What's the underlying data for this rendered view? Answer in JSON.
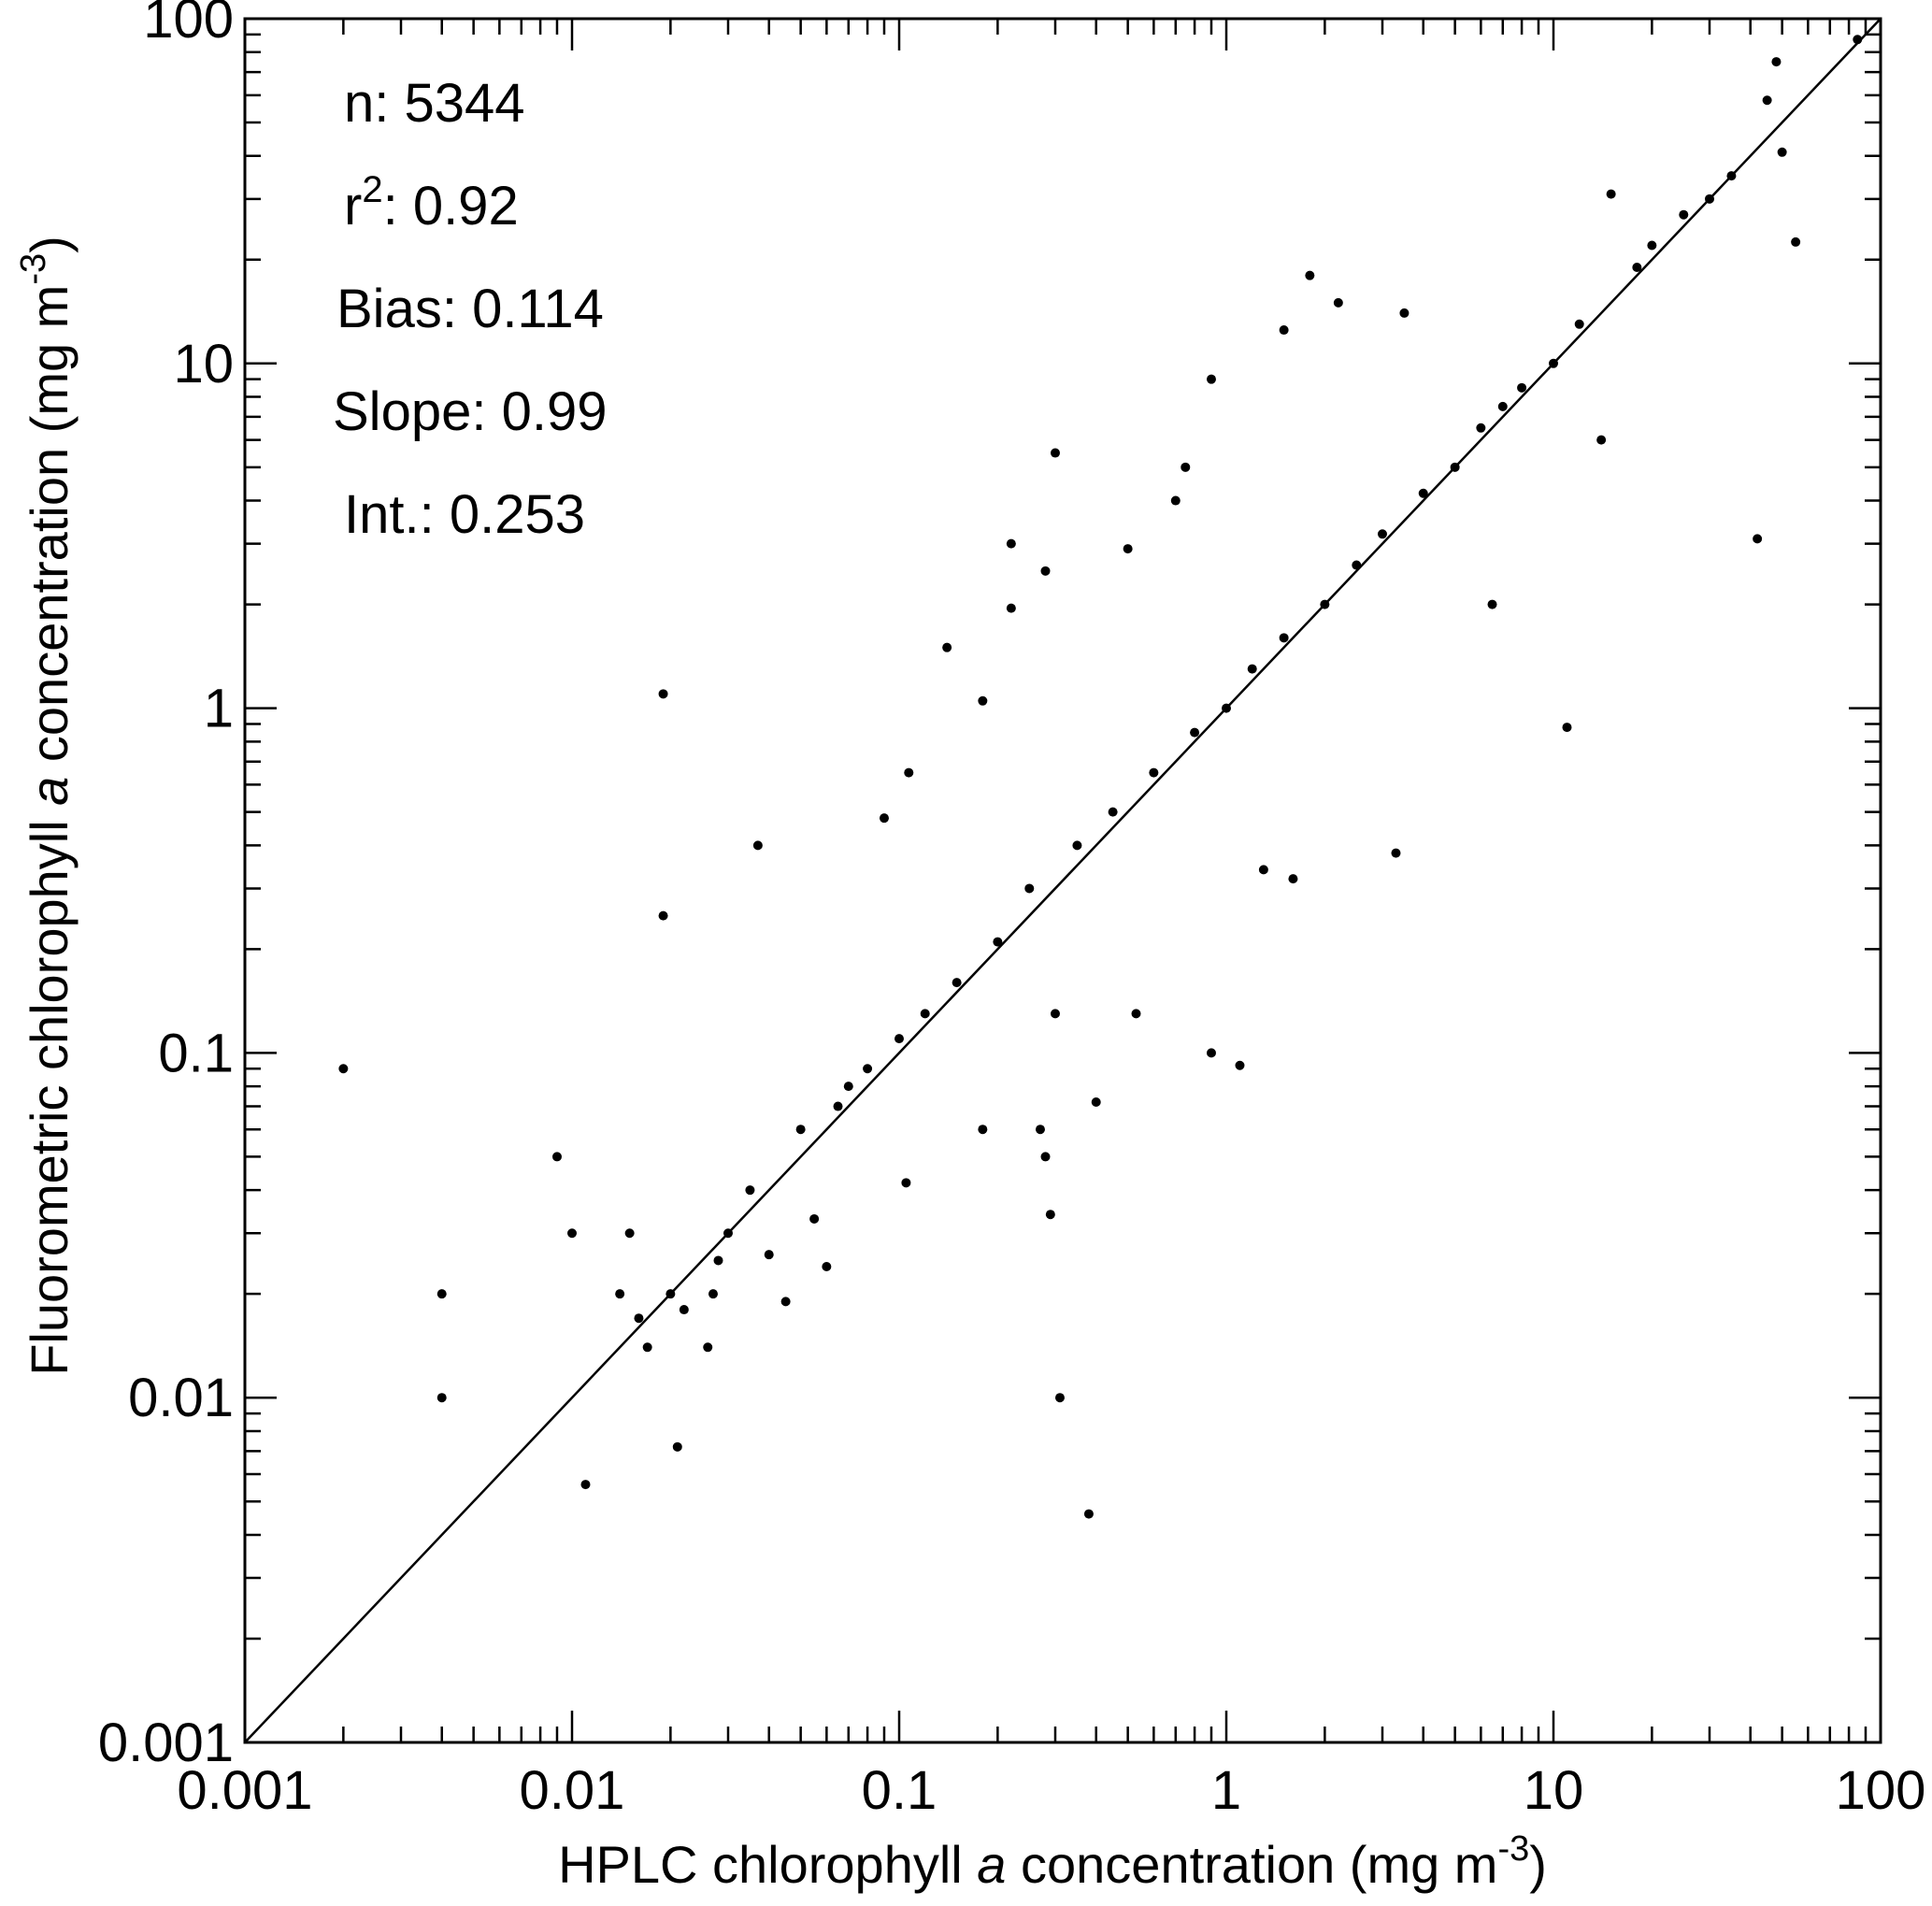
{
  "chart_data": {
    "type": "scatter",
    "title": "",
    "xlabel": {
      "prefix": "HPLC chlorophyll ",
      "italic": "a",
      "suffix": " concentration (mg m",
      "superscript": "-3",
      "close": ")"
    },
    "ylabel": {
      "prefix": "Fluorometric chlorophyll ",
      "italic": "a",
      "suffix": " concentration (mg m",
      "superscript": "-3",
      "close": ")"
    },
    "xscale": "log",
    "yscale": "log",
    "xlim": [
      0.001,
      100
    ],
    "ylim": [
      0.001,
      100
    ],
    "xticks": [
      0.001,
      0.01,
      0.1,
      1,
      10,
      100
    ],
    "yticks": [
      0.001,
      0.01,
      0.1,
      1,
      10,
      100
    ],
    "xtick_labels": [
      "0.001",
      "0.01",
      "0.1",
      "1",
      "10",
      "100"
    ],
    "ytick_labels": [
      "0.001",
      "0.01",
      "0.1",
      "1",
      "10",
      "100"
    ],
    "grid": false,
    "reference_line": {
      "name": "1:1",
      "x": [
        0.001,
        100
      ],
      "y": [
        0.001,
        100
      ]
    },
    "stats": [
      {
        "label": "n: ",
        "value": "5344"
      },
      {
        "label": "r",
        "sup": "2",
        "after": ": ",
        "value": "0.92"
      },
      {
        "label": "Bias: ",
        "value": "0.114"
      },
      {
        "label": "Slope: ",
        "value": "0.99"
      },
      {
        "label": "Int.: ",
        "value": "0.253"
      }
    ],
    "series": [
      {
        "points": [
          [
            0.002,
            0.09
          ],
          [
            0.004,
            0.02
          ],
          [
            0.004,
            0.01
          ],
          [
            0.009,
            0.05
          ],
          [
            0.01,
            0.03
          ],
          [
            0.011,
            0.0056
          ],
          [
            0.014,
            0.02
          ],
          [
            0.015,
            0.03
          ],
          [
            0.016,
            0.017
          ],
          [
            0.017,
            0.014
          ],
          [
            0.019,
            1.1
          ],
          [
            0.019,
            0.25
          ],
          [
            0.02,
            0.02
          ],
          [
            0.021,
            0.0072
          ],
          [
            0.022,
            0.018
          ],
          [
            0.026,
            0.014
          ],
          [
            0.027,
            0.02
          ],
          [
            0.028,
            0.025
          ],
          [
            0.03,
            0.03
          ],
          [
            0.035,
            0.04
          ],
          [
            0.037,
            0.4
          ],
          [
            0.04,
            0.026
          ],
          [
            0.045,
            0.019
          ],
          [
            0.05,
            0.06
          ],
          [
            0.055,
            0.033
          ],
          [
            0.06,
            0.024
          ],
          [
            0.065,
            0.07
          ],
          [
            0.07,
            0.08
          ],
          [
            0.08,
            0.09
          ],
          [
            0.09,
            0.48
          ],
          [
            0.1,
            0.11
          ],
          [
            0.105,
            0.042
          ],
          [
            0.107,
            0.65
          ],
          [
            0.12,
            0.13
          ],
          [
            0.14,
            1.5
          ],
          [
            0.15,
            0.16
          ],
          [
            0.18,
            1.05
          ],
          [
            0.18,
            0.06
          ],
          [
            0.2,
            0.21
          ],
          [
            0.22,
            3.0
          ],
          [
            0.22,
            1.95
          ],
          [
            0.25,
            0.3
          ],
          [
            0.27,
            0.06
          ],
          [
            0.28,
            0.05
          ],
          [
            0.28,
            2.5
          ],
          [
            0.29,
            0.034
          ],
          [
            0.3,
            5.5
          ],
          [
            0.3,
            0.13
          ],
          [
            0.31,
            0.01
          ],
          [
            0.35,
            0.4
          ],
          [
            0.38,
            0.0046
          ],
          [
            0.4,
            0.072
          ],
          [
            0.45,
            0.5
          ],
          [
            0.5,
            2.9
          ],
          [
            0.53,
            0.13
          ],
          [
            0.6,
            0.65
          ],
          [
            0.7,
            4.0
          ],
          [
            0.75,
            5.0
          ],
          [
            0.8,
            0.85
          ],
          [
            0.9,
            9.0
          ],
          [
            0.9,
            0.1
          ],
          [
            1.0,
            1.0
          ],
          [
            1.1,
            0.092
          ],
          [
            1.2,
            1.3
          ],
          [
            1.3,
            0.34
          ],
          [
            1.5,
            1.6
          ],
          [
            1.5,
            12.5
          ],
          [
            1.6,
            0.32
          ],
          [
            1.8,
            18.0
          ],
          [
            2.0,
            2.0
          ],
          [
            2.2,
            15.0
          ],
          [
            2.5,
            2.6
          ],
          [
            3.0,
            3.2
          ],
          [
            3.3,
            0.38
          ],
          [
            3.5,
            14.0
          ],
          [
            4.0,
            4.2
          ],
          [
            5.0,
            5.0
          ],
          [
            6.0,
            6.5
          ],
          [
            6.5,
            2.0
          ],
          [
            7.0,
            7.5
          ],
          [
            8.0,
            8.5
          ],
          [
            10.0,
            10.0
          ],
          [
            11.0,
            0.88
          ],
          [
            12.0,
            13.0
          ],
          [
            14.0,
            6.0
          ],
          [
            15.0,
            31.0
          ],
          [
            18.0,
            19.0
          ],
          [
            20.0,
            22.0
          ],
          [
            25.0,
            27.0
          ],
          [
            30.0,
            30.0
          ],
          [
            35.0,
            35.0
          ],
          [
            42.0,
            3.1
          ],
          [
            45.0,
            58.0
          ],
          [
            48.0,
            75.0
          ],
          [
            50.0,
            41.0
          ],
          [
            55.0,
            22.5
          ],
          [
            85.0,
            87.0
          ]
        ]
      }
    ]
  }
}
